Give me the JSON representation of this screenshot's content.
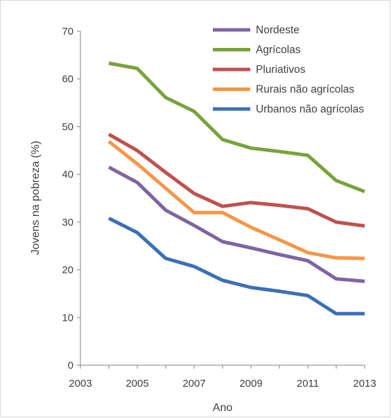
{
  "chart_data": {
    "type": "line",
    "title": "",
    "xlabel": "Ano",
    "ylabel": "Jovens na pobreza (%)",
    "xlim": [
      2003,
      2013
    ],
    "ylim": [
      0,
      70
    ],
    "x_ticks": [
      2003,
      2005,
      2007,
      2009,
      2011,
      2013
    ],
    "y_ticks": [
      0,
      10,
      20,
      30,
      40,
      50,
      60,
      70
    ],
    "grid": false,
    "legend_position": "top-right",
    "x": [
      2004,
      2005,
      2006,
      2007,
      2008,
      2009,
      2010,
      2011,
      2012,
      2013
    ],
    "series": [
      {
        "name": "Nordeste",
        "color": "#8064a2",
        "values": [
          41.5,
          38.3,
          32.5,
          29.3,
          25.9,
          24.6,
          23.2,
          21.9,
          18.1,
          17.6
        ]
      },
      {
        "name": "Agrícolas",
        "color": "#77a33c",
        "values": [
          63.3,
          62.2,
          56.1,
          53.2,
          47.3,
          45.5,
          44.8,
          44.0,
          38.7,
          36.4
        ]
      },
      {
        "name": "Pluriativos",
        "color": "#c0504d",
        "values": [
          48.4,
          45.0,
          40.4,
          36.0,
          33.3,
          34.1,
          33.5,
          32.8,
          30.0,
          29.2
        ]
      },
      {
        "name": "Rurais não agrícolas",
        "color": "#f79646",
        "values": [
          46.9,
          42.2,
          37.1,
          32.0,
          32.0,
          28.9,
          26.3,
          23.6,
          22.5,
          22.4
        ]
      },
      {
        "name": "Urbanos não agrícolas",
        "color": "#3c6fb6",
        "values": [
          30.8,
          27.8,
          22.4,
          20.7,
          17.8,
          16.3,
          15.5,
          14.6,
          10.8,
          10.8
        ]
      }
    ]
  }
}
